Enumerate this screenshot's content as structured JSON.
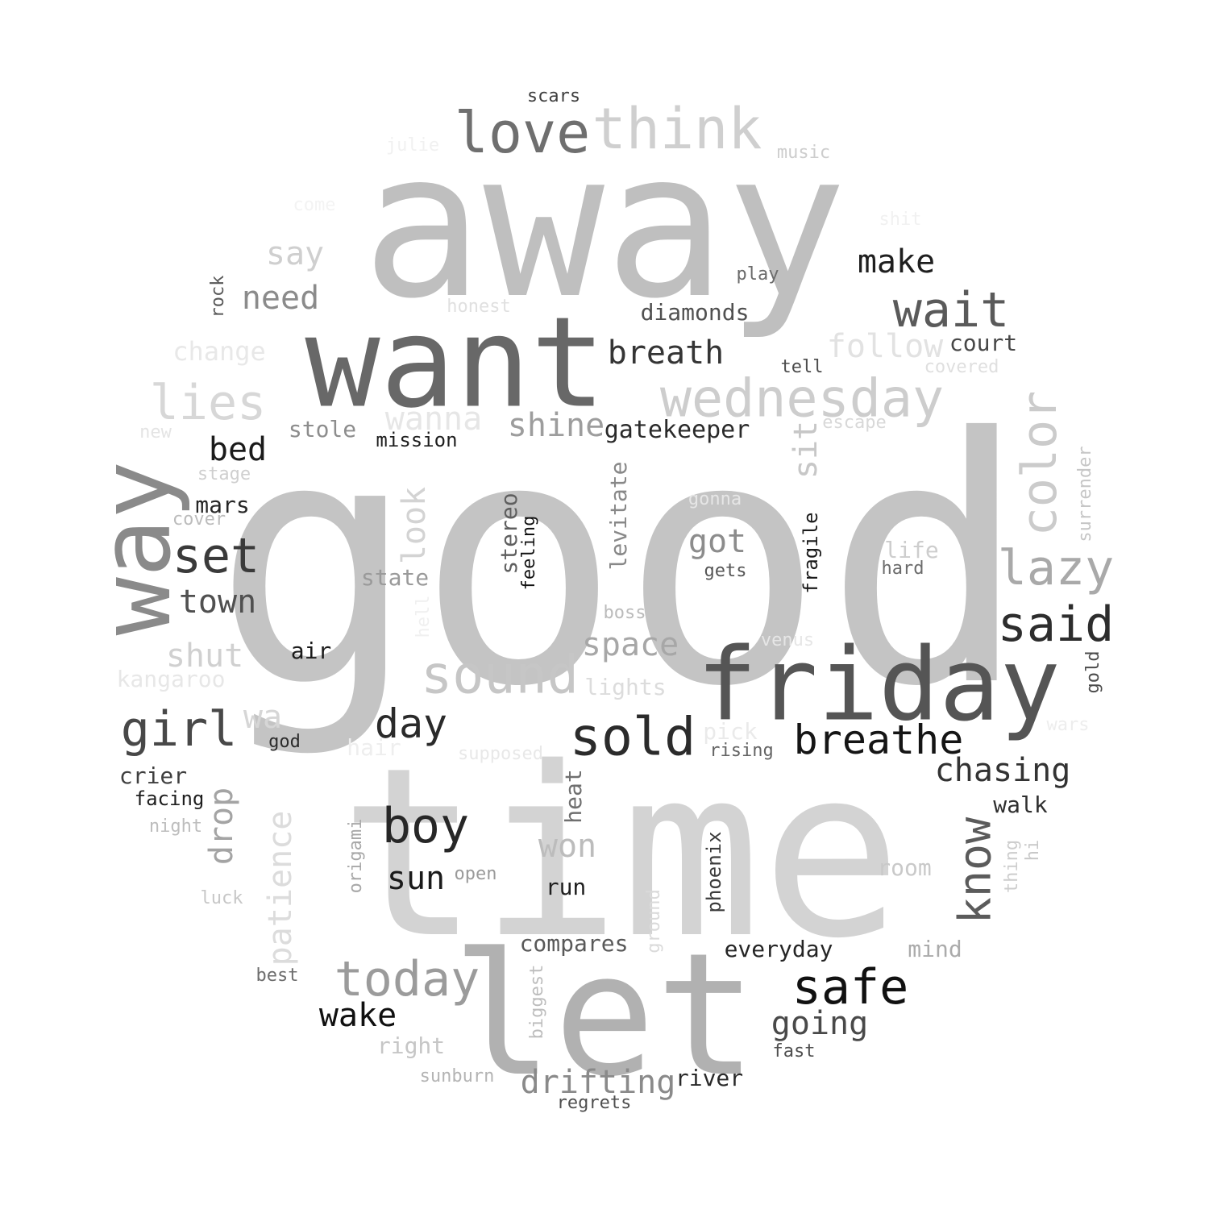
{
  "words": [
    {
      "text": "good",
      "color": "#c4c4c4",
      "rotated": false
    },
    {
      "text": "away",
      "color": "#bfbfbf",
      "rotated": false
    },
    {
      "text": "time",
      "color": "#d3d3d3",
      "rotated": false
    },
    {
      "text": "want",
      "color": "#686868",
      "rotated": false
    },
    {
      "text": "let",
      "color": "#b1b1b1",
      "rotated": false
    },
    {
      "text": "friday",
      "color": "#555555",
      "rotated": false
    },
    {
      "text": "way",
      "color": "#8a8a8a",
      "rotated": true
    },
    {
      "text": "think",
      "color": "#cfcfcf",
      "rotated": false
    },
    {
      "text": "love",
      "color": "#6f6f6f",
      "rotated": false
    },
    {
      "text": "wednesday",
      "color": "#cdcdcd",
      "rotated": false
    },
    {
      "text": "sold",
      "color": "#2b2b2b",
      "rotated": false
    },
    {
      "text": "sound",
      "color": "#c6c6c6",
      "rotated": false
    },
    {
      "text": "wait",
      "color": "#5a5a5a",
      "rotated": false
    },
    {
      "text": "said",
      "color": "#2d2d2d",
      "rotated": false
    },
    {
      "text": "lazy",
      "color": "#a9a9a9",
      "rotated": false
    },
    {
      "text": "color",
      "color": "#cbcbcb",
      "rotated": true
    },
    {
      "text": "set",
      "color": "#3a3a3a",
      "rotated": false
    },
    {
      "text": "lies",
      "color": "#d7d7d7",
      "rotated": false
    },
    {
      "text": "girl",
      "color": "#484848",
      "rotated": false
    },
    {
      "text": "boy",
      "color": "#272727",
      "rotated": false
    },
    {
      "text": "today",
      "color": "#9b9b9b",
      "rotated": false
    },
    {
      "text": "safe",
      "color": "#111111",
      "rotated": false
    },
    {
      "text": "know",
      "color": "#5b5b5b",
      "rotated": true
    },
    {
      "text": "breathe",
      "color": "#151515",
      "rotated": false
    },
    {
      "text": "breath",
      "color": "#353535",
      "rotated": false
    },
    {
      "text": "drifting",
      "color": "#8a8a8a",
      "rotated": false
    },
    {
      "text": "drop",
      "color": "#a4a4a4",
      "rotated": true
    },
    {
      "text": "day",
      "color": "#2a2a2a",
      "rotated": false
    },
    {
      "text": "need",
      "color": "#8b8b8b",
      "rotated": false
    },
    {
      "text": "follow",
      "color": "#e2e2e2",
      "rotated": false
    },
    {
      "text": "shine",
      "color": "#9d9d9d",
      "rotated": false
    },
    {
      "text": "going",
      "color": "#494949",
      "rotated": false
    },
    {
      "text": "chasing",
      "color": "#333333",
      "rotated": false
    },
    {
      "text": "got",
      "color": "#8c8c8c",
      "rotated": false
    },
    {
      "text": "look",
      "color": "#d3d3d3",
      "rotated": true
    },
    {
      "text": "sit",
      "color": "#c7c7c7",
      "rotated": true
    },
    {
      "text": "make",
      "color": "#1f1f1f",
      "rotated": false
    },
    {
      "text": "say",
      "color": "#cfcfcf",
      "rotated": false
    },
    {
      "text": "space",
      "color": "#a7a7a7",
      "rotated": false
    },
    {
      "text": "shut",
      "color": "#d0d0d0",
      "rotated": false
    },
    {
      "text": "won",
      "color": "#bcbcbc",
      "rotated": false
    },
    {
      "text": "sun",
      "color": "#1b1b1b",
      "rotated": false
    },
    {
      "text": "wake",
      "color": "#101010",
      "rotated": false
    },
    {
      "text": "town",
      "color": "#505050",
      "rotated": false
    },
    {
      "text": "bed",
      "color": "#1b1b1b",
      "rotated": false
    },
    {
      "text": "wanna",
      "color": "#e6e6e6",
      "rotated": false
    },
    {
      "text": "patience",
      "color": "#dcdcdc",
      "rotated": true
    },
    {
      "text": "wa",
      "color": "#d6d6d6",
      "rotated": false
    },
    {
      "text": "change",
      "color": "#e8e8e8",
      "rotated": false
    },
    {
      "text": "gatekeeper",
      "color": "#2a2a2a",
      "rotated": false
    },
    {
      "text": "diamonds",
      "color": "#505050",
      "rotated": false
    },
    {
      "text": "compares",
      "color": "#595959",
      "rotated": false
    },
    {
      "text": "everyday",
      "color": "#252525",
      "rotated": false
    },
    {
      "text": "levitate",
      "color": "#888888",
      "rotated": true
    },
    {
      "text": "stereo",
      "color": "#5f5f5f",
      "rotated": true
    },
    {
      "text": "feeling",
      "color": "#121212",
      "rotated": true
    },
    {
      "text": "stole",
      "color": "#8d8d8d",
      "rotated": false
    },
    {
      "text": "court",
      "color": "#474747",
      "rotated": false
    },
    {
      "text": "state",
      "color": "#9a9a9a",
      "rotated": false
    },
    {
      "text": "lights",
      "color": "#dcdcdc",
      "rotated": false
    },
    {
      "text": "mission",
      "color": "#1e1e1e",
      "rotated": false
    },
    {
      "text": "crier",
      "color": "#3f3f3f",
      "rotated": false
    },
    {
      "text": "facing",
      "color": "#1e1e1e",
      "rotated": false
    },
    {
      "text": "run",
      "color": "#1f1f1f",
      "rotated": false
    },
    {
      "text": "walk",
      "color": "#2f2f2f",
      "rotated": false
    },
    {
      "text": "river",
      "color": "#292929",
      "rotated": false
    },
    {
      "text": "air",
      "color": "#1b1b1b",
      "rotated": false
    },
    {
      "text": "mars",
      "color": "#262626",
      "rotated": false
    },
    {
      "text": "kangaroo",
      "color": "#e7e7e7",
      "rotated": false
    },
    {
      "text": "mind",
      "color": "#ababab",
      "rotated": false
    },
    {
      "text": "right",
      "color": "#c6c6c6",
      "rotated": false
    },
    {
      "text": "heat",
      "color": "#6f6f6f",
      "rotated": true
    },
    {
      "text": "life",
      "color": "#cdcdcd",
      "rotated": false
    },
    {
      "text": "room",
      "color": "#c9c9c9",
      "rotated": false
    },
    {
      "text": "pick",
      "color": "#eaeaea",
      "rotated": false
    },
    {
      "text": "hair",
      "color": "#eeeeee",
      "rotated": false
    },
    {
      "text": "fragile",
      "color": "#1a1a1a",
      "rotated": true
    },
    {
      "text": "phoenix",
      "color": "#3c3c3c",
      "rotated": true
    },
    {
      "text": "surrender",
      "color": "#c6c6c6",
      "rotated": true
    },
    {
      "text": "gold",
      "color": "#4c4c4c",
      "rotated": true
    },
    {
      "text": "scars",
      "color": "#3f3f3f",
      "rotated": false
    },
    {
      "text": "play",
      "color": "#6b6b6b",
      "rotated": false
    },
    {
      "text": "tell",
      "color": "#4c4c4c",
      "rotated": false
    },
    {
      "text": "rising",
      "color": "#646464",
      "rotated": false
    },
    {
      "text": "regrets",
      "color": "#4f4f4f",
      "rotated": false
    },
    {
      "text": "fast",
      "color": "#4f4f4f",
      "rotated": false
    },
    {
      "text": "gets",
      "color": "#555555",
      "rotated": false
    },
    {
      "text": "hard",
      "color": "#6b6b6b",
      "rotated": false
    },
    {
      "text": "boss",
      "color": "#bbbbbb",
      "rotated": false
    },
    {
      "text": "god",
      "color": "#2b2b2b",
      "rotated": false
    },
    {
      "text": "open",
      "color": "#9a9a9a",
      "rotated": false
    },
    {
      "text": "sunburn",
      "color": "#b4b4b4",
      "rotated": false
    },
    {
      "text": "best",
      "color": "#6e6e6e",
      "rotated": false
    },
    {
      "text": "night",
      "color": "#bdbdbd",
      "rotated": false
    },
    {
      "text": "luck",
      "color": "#c7c7c7",
      "rotated": false
    },
    {
      "text": "origami",
      "color": "#a8a8a8",
      "rotated": true
    },
    {
      "text": "biggest",
      "color": "#bdbdbd",
      "rotated": true
    },
    {
      "text": "ground",
      "color": "#dadada",
      "rotated": true
    },
    {
      "text": "supposed",
      "color": "#e8e8e8",
      "rotated": false
    },
    {
      "text": "thing",
      "color": "#cdcdcd",
      "rotated": true
    },
    {
      "text": "hi",
      "color": "#c8c8c8",
      "rotated": true
    },
    {
      "text": "rock",
      "color": "#595959",
      "rotated": true
    },
    {
      "text": "stage",
      "color": "#cfcfcf",
      "rotated": false
    },
    {
      "text": "cover",
      "color": "#bcbcbc",
      "rotated": false
    },
    {
      "text": "new",
      "color": "#e4e4e4",
      "rotated": false
    },
    {
      "text": "escape",
      "color": "#d8d8d8",
      "rotated": false
    },
    {
      "text": "covered",
      "color": "#dfdfdf",
      "rotated": false
    },
    {
      "text": "honest",
      "color": "#e0e0e0",
      "rotated": false
    },
    {
      "text": "music",
      "color": "#cdcdcd",
      "rotated": false
    },
    {
      "text": "gonna",
      "color": "#e6e6e6",
      "rotated": false
    },
    {
      "text": "venus",
      "color": "#e6e6e6",
      "rotated": false
    },
    {
      "text": "julie",
      "color": "#f1f1f1",
      "rotated": false
    },
    {
      "text": "come",
      "color": "#f3f3f3",
      "rotated": false
    },
    {
      "text": "shit",
      "color": "#f1f1f1",
      "rotated": false
    },
    {
      "text": "wars",
      "color": "#ededed",
      "rotated": false
    },
    {
      "text": "hell",
      "color": "#f0f0f0",
      "rotated": true
    }
  ]
}
